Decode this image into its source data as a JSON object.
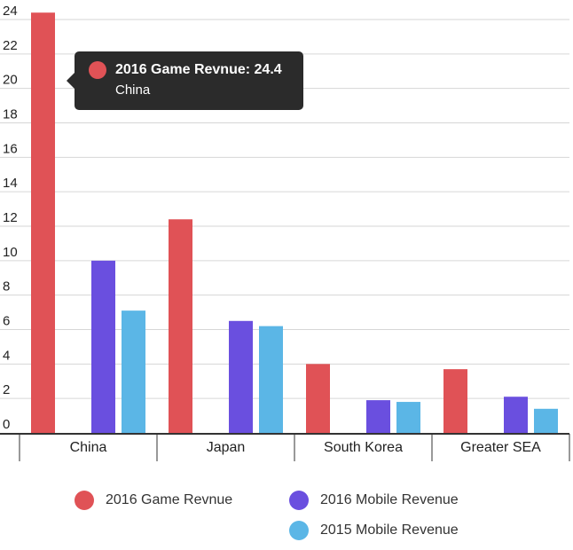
{
  "chart_data": {
    "type": "bar",
    "categories": [
      "China",
      "Japan",
      "South Korea",
      "Greater SEA"
    ],
    "series": [
      {
        "name": "2016 Game Revnue",
        "color": "#e05256",
        "values": [
          24.4,
          12.4,
          4.0,
          3.7
        ]
      },
      {
        "name": "2016 Mobile Revenue",
        "color": "#6a4fdf",
        "values": [
          10.0,
          6.5,
          1.9,
          2.1
        ]
      },
      {
        "name": "2015 Mobile Revenue",
        "color": "#5bb6e6",
        "values": [
          7.1,
          6.2,
          1.8,
          1.4
        ]
      }
    ],
    "ylim": [
      0,
      24
    ],
    "yticks": [
      0,
      2,
      4,
      6,
      8,
      10,
      12,
      14,
      16,
      18,
      20,
      22,
      24
    ],
    "grid": true,
    "legend_position": "bottom"
  },
  "tooltip": {
    "title": "2016 Game Revnue: 24.4",
    "subtitle": "China",
    "color": "#e05256"
  }
}
